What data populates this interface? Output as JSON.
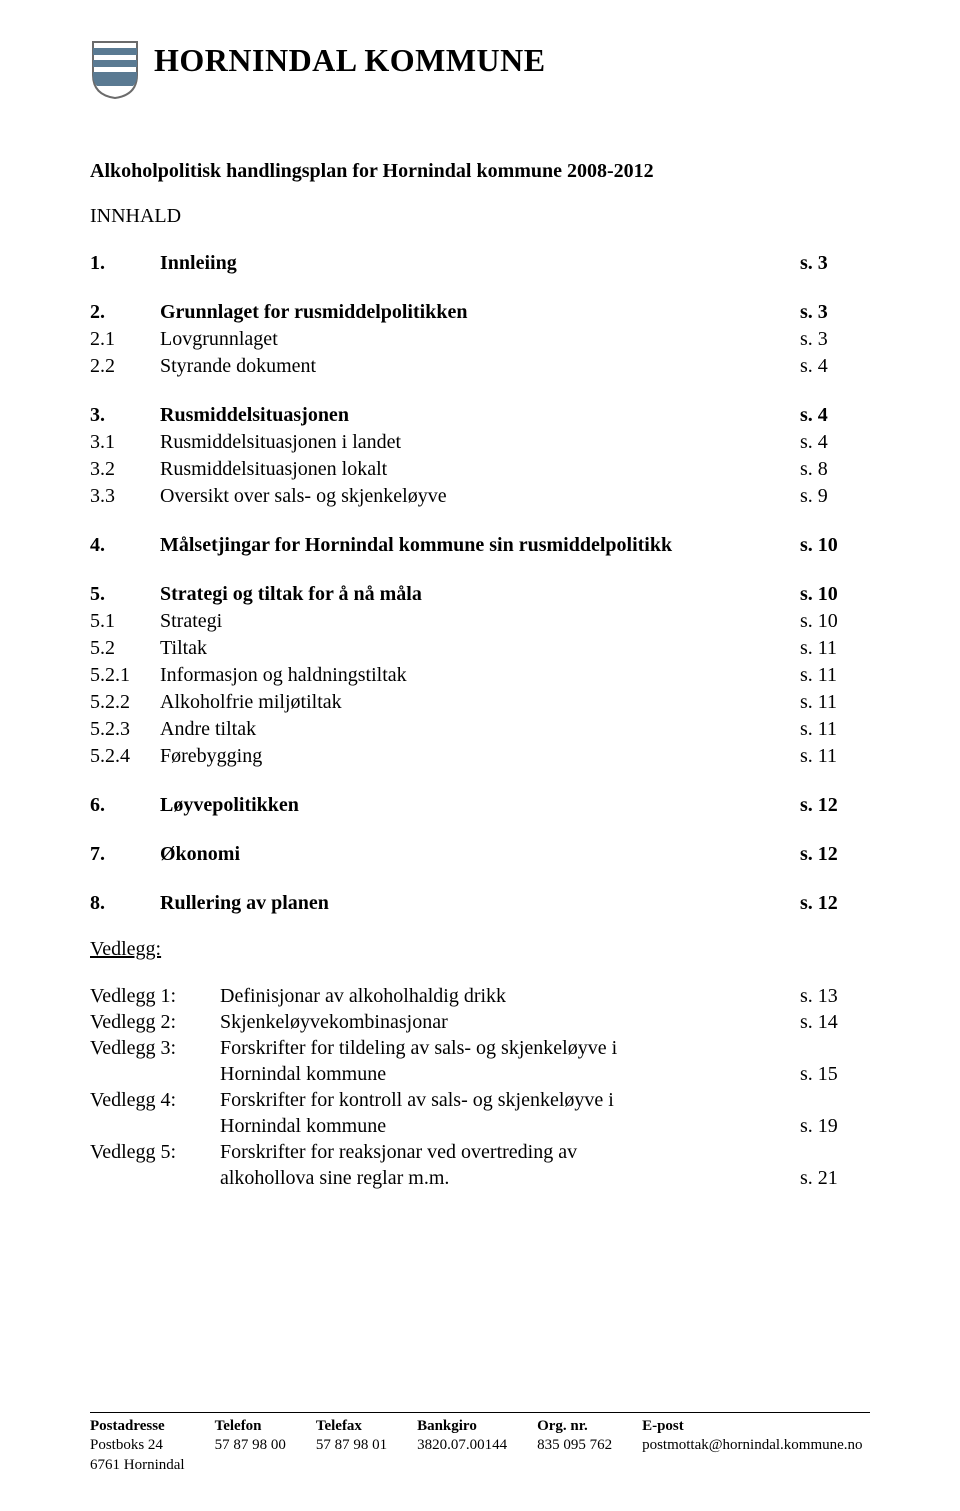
{
  "header": {
    "org": "HORNINDAL KOMMUNE",
    "logo_colors": {
      "outline": "#6b6b6b",
      "band": "#5a7a92",
      "fill": "#ffffff"
    }
  },
  "title": "Alkoholpolitisk handlingsplan for Hornindal kommune 2008-2012",
  "innhald": "INNHALD",
  "toc": [
    {
      "num": "1.",
      "label": "Innleiing",
      "page": "s. 3",
      "bold": true
    },
    {
      "gap": true
    },
    {
      "num": "2.",
      "label": "Grunnlaget for rusmiddelpolitikken",
      "page": "s. 3",
      "bold": true
    },
    {
      "num": "2.1",
      "label": "Lovgrunnlaget",
      "page": "s. 3"
    },
    {
      "num": "2.2",
      "label": "Styrande dokument",
      "page": "s. 4"
    },
    {
      "gap": true
    },
    {
      "num": "3.",
      "label": "Rusmiddelsituasjonen",
      "page": "s. 4",
      "bold": true
    },
    {
      "num": "3.1",
      "label": "Rusmiddelsituasjonen i landet",
      "page": "s. 4"
    },
    {
      "num": "3.2",
      "label": "Rusmiddelsituasjonen lokalt",
      "page": "s. 8"
    },
    {
      "num": "3.3",
      "label": "Oversikt over sals- og skjenkeløyve",
      "page": "s. 9"
    },
    {
      "gap": true
    },
    {
      "num": "4.",
      "label": "Målsetjingar for Hornindal kommune sin rusmiddelpolitikk",
      "page": "s. 10",
      "bold": true
    },
    {
      "gap": true
    },
    {
      "num": "5.",
      "label": "Strategi og tiltak for å nå måla",
      "page": "s. 10",
      "bold": true
    },
    {
      "num": "5.1",
      "label": "Strategi",
      "page": "s. 10"
    },
    {
      "num": "5.2",
      "label": "Tiltak",
      "page": "s. 11"
    },
    {
      "num": "5.2.1",
      "label": "Informasjon og haldningstiltak",
      "page": "s. 11"
    },
    {
      "num": "5.2.2",
      "label": "Alkoholfrie miljøtiltak",
      "page": "s. 11"
    },
    {
      "num": "5.2.3",
      "label": "Andre tiltak",
      "page": "s. 11"
    },
    {
      "num": "5.2.4",
      "label": "Førebygging",
      "page": "s. 11"
    },
    {
      "gap": true
    },
    {
      "num": "6.",
      "label": "Løyvepolitikken",
      "page": "s. 12",
      "bold": true
    },
    {
      "gap": true
    },
    {
      "num": "7.",
      "label": "Økonomi",
      "page": "s. 12",
      "bold": true
    },
    {
      "gap": true
    },
    {
      "num": "8.",
      "label": "Rullering av planen",
      "page": "s. 12",
      "bold": true
    }
  ],
  "vedlegg_heading": "Vedlegg:",
  "vedlegg": [
    {
      "key": "Vedlegg 1:",
      "lines": [
        {
          "text": "Definisjonar av alkoholhaldig drikk",
          "page": "s. 13"
        }
      ]
    },
    {
      "key": "Vedlegg 2:",
      "lines": [
        {
          "text": "Skjenkeløyvekombinasjonar",
          "page": "s. 14"
        }
      ]
    },
    {
      "key": "Vedlegg 3:",
      "lines": [
        {
          "text": "Forskrifter for tildeling av sals- og skjenkeløyve i",
          "page": ""
        },
        {
          "text": "Hornindal kommune",
          "page": "s. 15"
        }
      ]
    },
    {
      "key": "Vedlegg 4:",
      "lines": [
        {
          "text": "Forskrifter for kontroll av sals- og skjenkeløyve i",
          "page": ""
        },
        {
          "text": "Hornindal kommune",
          "page": "s. 19"
        }
      ]
    },
    {
      "key": "Vedlegg 5:",
      "lines": [
        {
          "text": "Forskrifter for reaksjonar ved overtreding av",
          "page": ""
        },
        {
          "text": "alkohollova sine reglar m.m.",
          "page": "s. 21"
        }
      ]
    }
  ],
  "footer": {
    "cols": [
      {
        "head": "Postadresse",
        "rows": [
          "Postboks 24",
          "6761 Hornindal"
        ]
      },
      {
        "head": "Telefon",
        "rows": [
          "57 87 98 00"
        ]
      },
      {
        "head": "Telefax",
        "rows": [
          "57 87 98 01"
        ]
      },
      {
        "head": "Bankgiro",
        "rows": [
          "3820.07.00144"
        ]
      },
      {
        "head": "Org. nr.",
        "rows": [
          "835 095 762"
        ]
      },
      {
        "head": "E-post",
        "rows": [
          "postmottak@hornindal.kommune.no"
        ]
      }
    ]
  }
}
